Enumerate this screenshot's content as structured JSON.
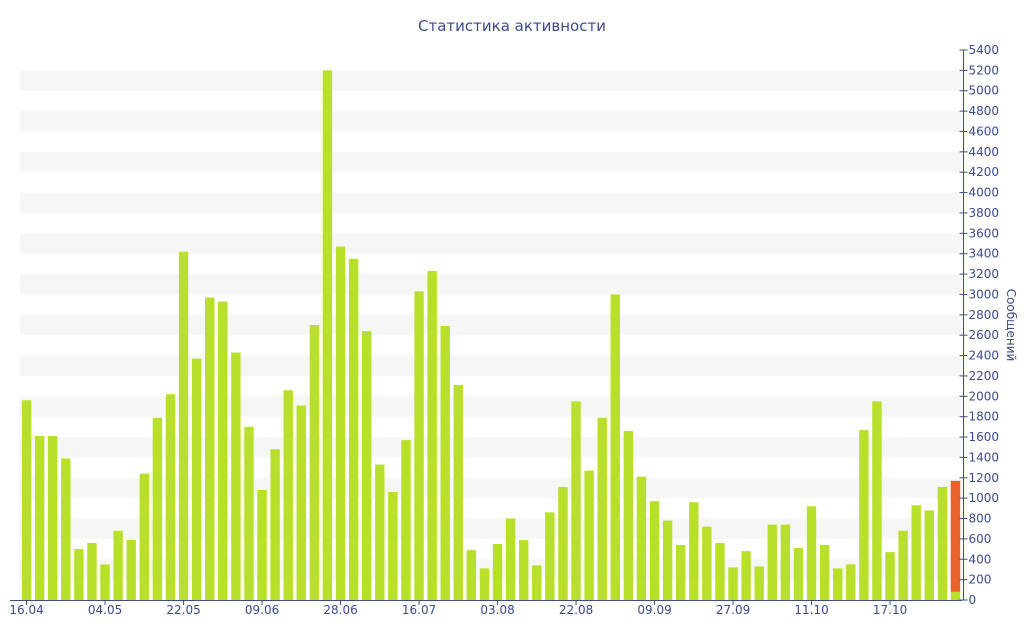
{
  "chart_data": {
    "type": "bar",
    "title": "Статистика активности",
    "xlabel": "",
    "ylabel": "Сообщений",
    "ylim": [
      0,
      5400
    ],
    "y_ticks": [
      0,
      200,
      400,
      600,
      800,
      1000,
      1200,
      1400,
      1600,
      1800,
      2000,
      2200,
      2400,
      2600,
      2800,
      3000,
      3200,
      3400,
      3600,
      3800,
      4000,
      4200,
      4400,
      4600,
      4800,
      5000,
      5200,
      5400
    ],
    "x_tick_labels": [
      {
        "label": "16.04",
        "index": 0
      },
      {
        "label": "04.05",
        "index": 6
      },
      {
        "label": "22.05",
        "index": 12
      },
      {
        "label": "09.06",
        "index": 18
      },
      {
        "label": "28.06",
        "index": 24
      },
      {
        "label": "16.07",
        "index": 30
      },
      {
        "label": "03.08",
        "index": 36
      },
      {
        "label": "22.08",
        "index": 42
      },
      {
        "label": "09.09",
        "index": 48
      },
      {
        "label": "27.09",
        "index": 54
      },
      {
        "label": "11.10",
        "index": 60
      },
      {
        "label": "17.10",
        "index": 66
      }
    ],
    "grid": "horizontal alternating bands",
    "colors": {
      "bar": "#b8e02a",
      "highlight": "#e8622a",
      "band": "#f6f6f6",
      "text": "#3d4b8c"
    },
    "values": [
      1960,
      1610,
      1610,
      1390,
      500,
      560,
      350,
      680,
      590,
      1240,
      1790,
      2020,
      3420,
      2370,
      2970,
      2930,
      2430,
      1700,
      1080,
      1480,
      2060,
      1910,
      2700,
      5200,
      3470,
      3350,
      2640,
      1330,
      1060,
      1570,
      3030,
      3230,
      2690,
      2110,
      490,
      310,
      550,
      800,
      590,
      340,
      860,
      1110,
      1950,
      1270,
      1790,
      3000,
      1660,
      1210,
      970,
      780,
      540,
      960,
      720,
      560,
      320,
      480,
      330,
      740,
      740,
      510,
      920,
      540,
      310,
      350,
      1670,
      1950,
      470,
      680,
      930,
      880,
      1110,
      1170
    ],
    "highlight": {
      "index": 71,
      "total": 1170,
      "base_value": 80
    }
  }
}
